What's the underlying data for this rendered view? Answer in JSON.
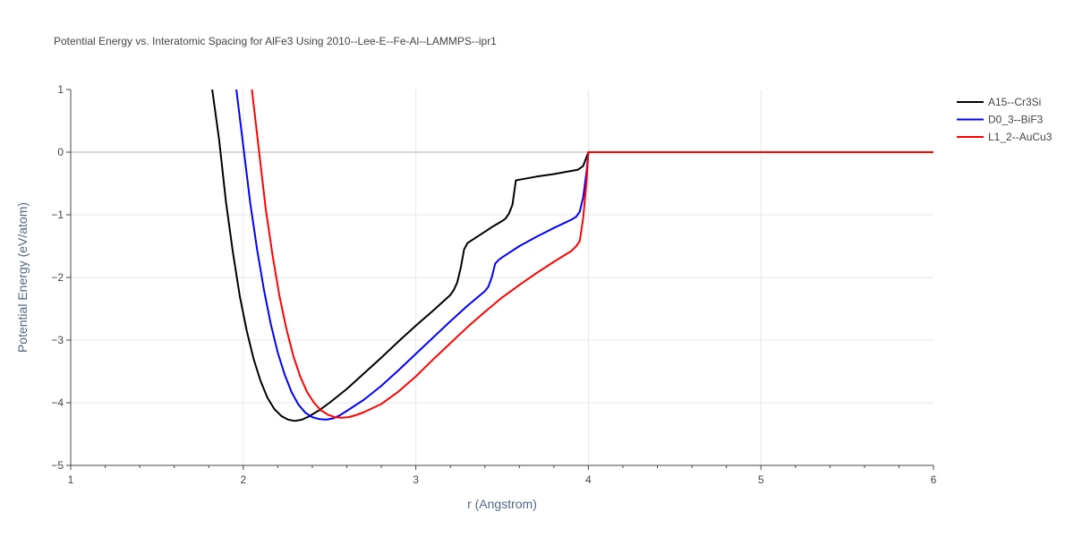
{
  "chart_data": {
    "type": "line",
    "title": "Potential Energy vs. Interatomic Spacing for AlFe3 Using 2010--Lee-E--Fe-Al--LAMMPS--ipr1",
    "xlabel": "r (Angstrom)",
    "ylabel": "Potential Energy (eV/atom)",
    "xlim": [
      1,
      6
    ],
    "ylim": [
      -5,
      1
    ],
    "x_ticks": [
      1,
      2,
      3,
      4,
      5,
      6
    ],
    "y_ticks": [
      1,
      0,
      -1,
      -2,
      -3,
      -4,
      -5
    ],
    "x_tick_labels": [
      "1",
      "2",
      "3",
      "4",
      "5",
      "6"
    ],
    "y_tick_labels": [
      "1",
      "0",
      "−1",
      "−2",
      "−3",
      "−4",
      "−5"
    ],
    "grid": true,
    "legend_position": "top-right",
    "series": [
      {
        "name": "A15--Cr3Si",
        "color": "#000000",
        "x": [
          1.82,
          1.86,
          1.9,
          1.94,
          1.98,
          2.02,
          2.06,
          2.1,
          2.14,
          2.18,
          2.22,
          2.26,
          2.3,
          2.34,
          2.38,
          2.44,
          2.5,
          2.6,
          2.7,
          2.8,
          2.9,
          3.0,
          3.1,
          3.2,
          3.22,
          3.24,
          3.26,
          3.28,
          3.3,
          3.35,
          3.4,
          3.45,
          3.5,
          3.52,
          3.54,
          3.56,
          3.58,
          3.6,
          3.7,
          3.8,
          3.9,
          3.94,
          3.97,
          4.0,
          4.5,
          5.0,
          5.5,
          6.0
        ],
        "y": [
          1.0,
          0.2,
          -0.8,
          -1.6,
          -2.3,
          -2.85,
          -3.3,
          -3.65,
          -3.92,
          -4.1,
          -4.21,
          -4.27,
          -4.29,
          -4.27,
          -4.22,
          -4.12,
          -4.0,
          -3.78,
          -3.53,
          -3.28,
          -3.02,
          -2.77,
          -2.53,
          -2.28,
          -2.2,
          -2.08,
          -1.85,
          -1.55,
          -1.45,
          -1.36,
          -1.27,
          -1.18,
          -1.1,
          -1.06,
          -0.98,
          -0.84,
          -0.45,
          -0.44,
          -0.39,
          -0.35,
          -0.3,
          -0.28,
          -0.22,
          0.0,
          0.0,
          0.0,
          0.0,
          0.0
        ]
      },
      {
        "name": "D0_3--BiF3",
        "color": "#0000ff",
        "x": [
          1.96,
          2.0,
          2.04,
          2.08,
          2.12,
          2.16,
          2.2,
          2.24,
          2.28,
          2.32,
          2.36,
          2.4,
          2.44,
          2.48,
          2.52,
          2.56,
          2.6,
          2.7,
          2.8,
          2.9,
          3.0,
          3.1,
          3.2,
          3.3,
          3.4,
          3.42,
          3.44,
          3.46,
          3.48,
          3.5,
          3.6,
          3.7,
          3.8,
          3.9,
          3.93,
          3.95,
          3.97,
          3.99,
          4.0,
          4.5,
          5.0,
          5.5,
          6.0
        ],
        "y": [
          1.0,
          0.1,
          -0.8,
          -1.55,
          -2.2,
          -2.75,
          -3.2,
          -3.55,
          -3.83,
          -4.03,
          -4.16,
          -4.23,
          -4.26,
          -4.27,
          -4.25,
          -4.2,
          -4.13,
          -3.95,
          -3.73,
          -3.48,
          -3.22,
          -2.96,
          -2.7,
          -2.45,
          -2.22,
          -2.15,
          -2.0,
          -1.78,
          -1.72,
          -1.68,
          -1.5,
          -1.35,
          -1.21,
          -1.08,
          -1.03,
          -0.95,
          -0.72,
          -0.3,
          0.0,
          0.0,
          0.0,
          0.0,
          0.0
        ]
      },
      {
        "name": "L1_2--AuCu3",
        "color": "#ff0000",
        "x": [
          2.05,
          2.09,
          2.13,
          2.17,
          2.21,
          2.25,
          2.29,
          2.33,
          2.37,
          2.41,
          2.45,
          2.49,
          2.53,
          2.57,
          2.61,
          2.65,
          2.7,
          2.8,
          2.9,
          3.0,
          3.1,
          3.2,
          3.3,
          3.4,
          3.5,
          3.6,
          3.7,
          3.8,
          3.9,
          3.93,
          3.95,
          3.97,
          3.99,
          4.0,
          4.5,
          5.0,
          5.5,
          6.0
        ],
        "y": [
          1.0,
          0.05,
          -0.9,
          -1.65,
          -2.3,
          -2.82,
          -3.25,
          -3.58,
          -3.83,
          -4.0,
          -4.12,
          -4.19,
          -4.23,
          -4.24,
          -4.23,
          -4.2,
          -4.15,
          -4.02,
          -3.82,
          -3.58,
          -3.31,
          -3.05,
          -2.79,
          -2.55,
          -2.32,
          -2.12,
          -1.93,
          -1.75,
          -1.58,
          -1.5,
          -1.42,
          -1.05,
          -0.45,
          0.0,
          0.0,
          0.0,
          0.0,
          0.0
        ]
      }
    ]
  }
}
